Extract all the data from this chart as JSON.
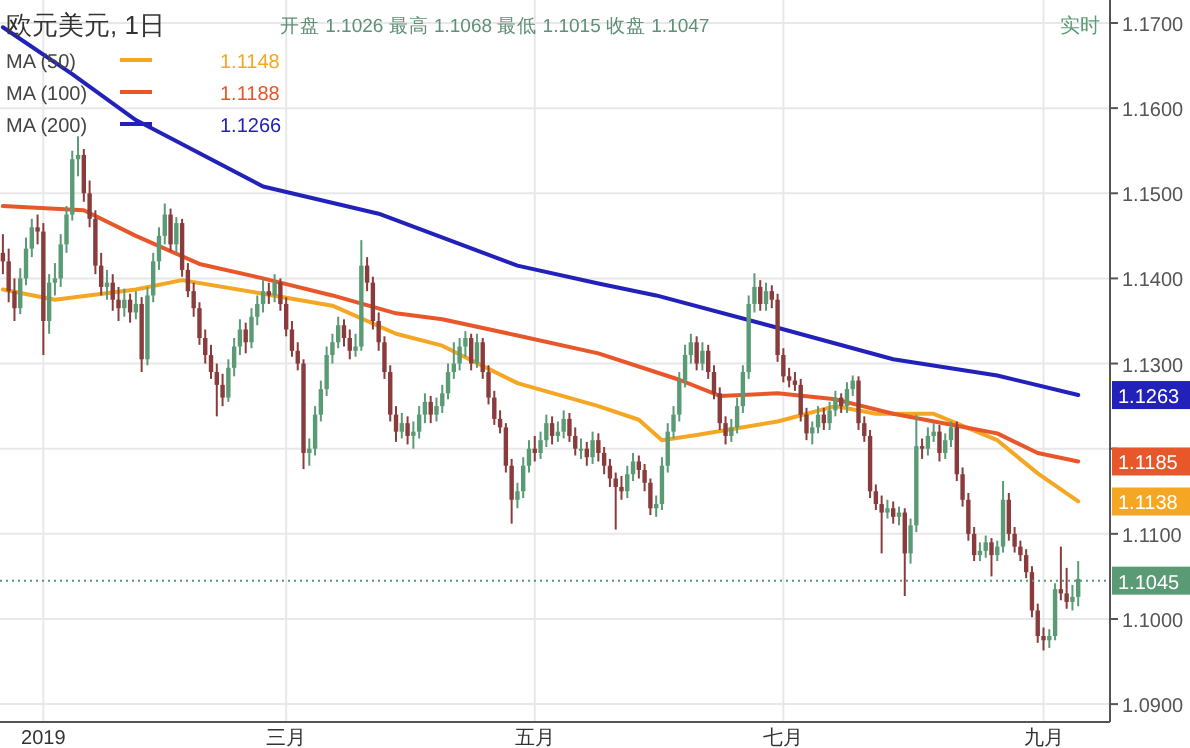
{
  "chart_data": {
    "type": "candlestick",
    "title": "欧元美元, 1日",
    "categories": [
      null,
      null,
      null,
      null,
      null,
      null,
      null,
      "2019",
      null,
      null,
      null,
      null,
      null,
      null,
      null,
      null,
      null,
      null,
      null,
      null,
      null,
      null,
      null,
      null,
      null,
      null,
      null,
      null,
      null,
      null,
      null,
      null,
      null,
      null,
      null,
      null,
      null,
      null,
      null,
      null,
      null,
      null,
      null,
      null,
      null,
      null,
      null,
      null,
      null,
      "三月",
      null,
      null,
      null,
      null,
      null,
      null,
      null,
      null,
      null,
      null,
      null,
      null,
      null,
      null,
      null,
      null,
      null,
      null,
      null,
      null,
      null,
      null,
      null,
      null,
      null,
      null,
      null,
      null,
      null,
      null,
      null,
      null,
      null,
      null,
      null,
      null,
      null,
      null,
      null,
      null,
      null,
      null,
      "五月",
      null,
      null,
      null,
      null,
      null,
      null,
      null,
      null,
      null,
      null,
      null,
      null,
      null,
      null,
      null,
      null,
      null,
      null,
      null,
      null,
      null,
      null,
      null,
      null,
      null,
      null,
      null,
      null,
      null,
      null,
      null,
      null,
      null,
      null,
      null,
      null,
      null,
      null,
      null,
      null,
      null,
      null,
      "七月",
      null,
      null,
      null,
      null,
      null,
      null,
      null,
      null,
      null,
      null,
      null,
      null,
      null,
      null,
      null,
      null,
      null,
      null,
      null,
      null,
      null,
      null,
      null,
      null,
      null,
      null,
      null,
      null,
      null,
      null,
      null,
      null,
      null,
      null,
      null,
      null,
      null,
      null,
      null,
      null,
      null,
      null,
      null,
      null,
      "九月",
      null,
      null,
      null,
      null,
      null,
      null
    ],
    "ohlc": [
      [
        1.143,
        1.1452,
        1.1405,
        1.142
      ],
      [
        1.142,
        1.1435,
        1.1372,
        1.1385
      ],
      [
        1.1385,
        1.14,
        1.135,
        1.1365
      ],
      [
        1.1365,
        1.1412,
        1.1358,
        1.14
      ],
      [
        1.14,
        1.1448,
        1.1392,
        1.1435
      ],
      [
        1.1435,
        1.147,
        1.1425,
        1.146
      ],
      [
        1.146,
        1.1475,
        1.144,
        1.1455
      ],
      [
        1.1455,
        1.1465,
        1.131,
        1.135
      ],
      [
        1.135,
        1.1405,
        1.1335,
        1.1395
      ],
      [
        1.1395,
        1.1418,
        1.138,
        1.14
      ],
      [
        1.14,
        1.1452,
        1.139,
        1.144
      ],
      [
        1.144,
        1.1485,
        1.143,
        1.1475
      ],
      [
        1.1475,
        1.155,
        1.1468,
        1.154
      ],
      [
        1.154,
        1.1567,
        1.152,
        1.1545
      ],
      [
        1.1545,
        1.1552,
        1.149,
        1.15
      ],
      [
        1.15,
        1.1515,
        1.146,
        1.147
      ],
      [
        1.147,
        1.148,
        1.1405,
        1.1415
      ],
      [
        1.1415,
        1.143,
        1.138,
        1.139
      ],
      [
        1.139,
        1.141,
        1.1375,
        1.1395
      ],
      [
        1.1395,
        1.1405,
        1.1362,
        1.1375
      ],
      [
        1.1375,
        1.139,
        1.135,
        1.1365
      ],
      [
        1.1365,
        1.1388,
        1.1355,
        1.1375
      ],
      [
        1.1375,
        1.1382,
        1.1348,
        1.136
      ],
      [
        1.136,
        1.1385,
        1.1352,
        1.137
      ],
      [
        1.137,
        1.1378,
        1.129,
        1.1305
      ],
      [
        1.1305,
        1.139,
        1.1298,
        1.138
      ],
      [
        1.138,
        1.143,
        1.1372,
        1.142
      ],
      [
        1.142,
        1.146,
        1.141,
        1.145
      ],
      [
        1.145,
        1.1488,
        1.144,
        1.1475
      ],
      [
        1.1475,
        1.1482,
        1.1432,
        1.144
      ],
      [
        1.144,
        1.1472,
        1.143,
        1.1465
      ],
      [
        1.1465,
        1.147,
        1.1402,
        1.141
      ],
      [
        1.141,
        1.1418,
        1.1378,
        1.1385
      ],
      [
        1.1385,
        1.1395,
        1.1355,
        1.1365
      ],
      [
        1.1365,
        1.1372,
        1.1322,
        1.133
      ],
      [
        1.133,
        1.134,
        1.13,
        1.131
      ],
      [
        1.131,
        1.1322,
        1.1282,
        1.129
      ],
      [
        1.129,
        1.13,
        1.1238,
        1.1275
      ],
      [
        1.1275,
        1.1288,
        1.125,
        1.126
      ],
      [
        1.126,
        1.1305,
        1.1255,
        1.1295
      ],
      [
        1.1295,
        1.133,
        1.1285,
        1.132
      ],
      [
        1.132,
        1.1352,
        1.131,
        1.134
      ],
      [
        1.134,
        1.1348,
        1.1312,
        1.1325
      ],
      [
        1.1325,
        1.1365,
        1.1318,
        1.1355
      ],
      [
        1.1355,
        1.138,
        1.1345,
        1.137
      ],
      [
        1.137,
        1.1398,
        1.136,
        1.1385
      ],
      [
        1.1385,
        1.1395,
        1.137,
        1.138
      ],
      [
        1.138,
        1.1405,
        1.1372,
        1.1395
      ],
      [
        1.1395,
        1.14,
        1.1362,
        1.137
      ],
      [
        1.137,
        1.1378,
        1.1332,
        1.134
      ],
      [
        1.134,
        1.135,
        1.1308,
        1.1315
      ],
      [
        1.1315,
        1.1325,
        1.1292,
        1.13
      ],
      [
        1.13,
        1.1305,
        1.1176,
        1.1195
      ],
      [
        1.1195,
        1.1212,
        1.118,
        1.12
      ],
      [
        1.12,
        1.125,
        1.1192,
        1.124
      ],
      [
        1.124,
        1.128,
        1.1232,
        1.127
      ],
      [
        1.127,
        1.132,
        1.1262,
        1.131
      ],
      [
        1.131,
        1.1335,
        1.13,
        1.1325
      ],
      [
        1.1325,
        1.1355,
        1.1318,
        1.1345
      ],
      [
        1.1345,
        1.1352,
        1.132,
        1.133
      ],
      [
        1.133,
        1.134,
        1.1305,
        1.1315
      ],
      [
        1.1315,
        1.1335,
        1.1308,
        1.132
      ],
      [
        1.132,
        1.1445,
        1.1315,
        1.1415
      ],
      [
        1.1415,
        1.1425,
        1.1385,
        1.1395
      ],
      [
        1.1395,
        1.1402,
        1.134,
        1.135
      ],
      [
        1.135,
        1.136,
        1.1315,
        1.1325
      ],
      [
        1.1325,
        1.1332,
        1.1282,
        1.129
      ],
      [
        1.129,
        1.1298,
        1.1232,
        1.124
      ],
      [
        1.124,
        1.125,
        1.1208,
        1.122
      ],
      [
        1.122,
        1.1242,
        1.1212,
        1.123
      ],
      [
        1.123,
        1.1238,
        1.1205,
        1.1215
      ],
      [
        1.1215,
        1.1232,
        1.12,
        1.122
      ],
      [
        1.122,
        1.125,
        1.1212,
        1.124
      ],
      [
        1.124,
        1.1265,
        1.123,
        1.1255
      ],
      [
        1.1255,
        1.1262,
        1.123,
        1.124
      ],
      [
        1.124,
        1.126,
        1.1232,
        1.125
      ],
      [
        1.125,
        1.1275,
        1.1242,
        1.1265
      ],
      [
        1.1265,
        1.13,
        1.1258,
        1.129
      ],
      [
        1.129,
        1.1325,
        1.1282,
        1.13
      ],
      [
        1.13,
        1.133,
        1.1292,
        1.132
      ],
      [
        1.132,
        1.1338,
        1.1308,
        1.133
      ],
      [
        1.133,
        1.1335,
        1.1292,
        1.13
      ],
      [
        1.13,
        1.1335,
        1.1295,
        1.1325
      ],
      [
        1.1325,
        1.133,
        1.1282,
        1.129
      ],
      [
        1.129,
        1.1298,
        1.1252,
        1.126
      ],
      [
        1.126,
        1.1268,
        1.1228,
        1.1235
      ],
      [
        1.1235,
        1.1245,
        1.1218,
        1.1225
      ],
      [
        1.1225,
        1.123,
        1.1172,
        1.118
      ],
      [
        1.118,
        1.1188,
        1.1112,
        1.114
      ],
      [
        1.114,
        1.116,
        1.113,
        1.115
      ],
      [
        1.115,
        1.119,
        1.1142,
        1.118
      ],
      [
        1.118,
        1.121,
        1.1172,
        1.12
      ],
      [
        1.12,
        1.1215,
        1.1185,
        1.1195
      ],
      [
        1.1195,
        1.122,
        1.1188,
        1.121
      ],
      [
        1.121,
        1.124,
        1.1202,
        1.123
      ],
      [
        1.123,
        1.1238,
        1.1205,
        1.1215
      ],
      [
        1.1215,
        1.1232,
        1.1208,
        1.122
      ],
      [
        1.122,
        1.1245,
        1.1212,
        1.1235
      ],
      [
        1.1235,
        1.1242,
        1.1208,
        1.1215
      ],
      [
        1.1215,
        1.1225,
        1.1192,
        1.12
      ],
      [
        1.12,
        1.1212,
        1.1188,
        1.12
      ],
      [
        1.12,
        1.1208,
        1.118,
        1.119
      ],
      [
        1.119,
        1.122,
        1.1182,
        1.121
      ],
      [
        1.121,
        1.1218,
        1.1185,
        1.1195
      ],
      [
        1.1195,
        1.1202,
        1.117,
        1.118
      ],
      [
        1.118,
        1.1188,
        1.1155,
        1.1165
      ],
      [
        1.1165,
        1.1172,
        1.1105,
        1.1155
      ],
      [
        1.1155,
        1.1168,
        1.114,
        1.115
      ],
      [
        1.115,
        1.118,
        1.1142,
        1.117
      ],
      [
        1.117,
        1.1195,
        1.1162,
        1.1185
      ],
      [
        1.1185,
        1.1192,
        1.1165,
        1.1175
      ],
      [
        1.1175,
        1.1182,
        1.115,
        1.116
      ],
      [
        1.116,
        1.1165,
        1.1122,
        1.113
      ],
      [
        1.113,
        1.1145,
        1.112,
        1.1135
      ],
      [
        1.1135,
        1.119,
        1.1128,
        1.118
      ],
      [
        1.118,
        1.123,
        1.1172,
        1.122
      ],
      [
        1.122,
        1.125,
        1.1212,
        1.124
      ],
      [
        1.124,
        1.129,
        1.1232,
        1.128
      ],
      [
        1.128,
        1.1322,
        1.1272,
        1.131
      ],
      [
        1.131,
        1.1335,
        1.13,
        1.1325
      ],
      [
        1.1325,
        1.1332,
        1.1292,
        1.13
      ],
      [
        1.13,
        1.1325,
        1.1292,
        1.1315
      ],
      [
        1.1315,
        1.1322,
        1.1282,
        1.129
      ],
      [
        1.129,
        1.1298,
        1.1258,
        1.1265
      ],
      [
        1.1265,
        1.1272,
        1.1222,
        1.123
      ],
      [
        1.123,
        1.1238,
        1.1205,
        1.1215
      ],
      [
        1.1215,
        1.1235,
        1.1208,
        1.1225
      ],
      [
        1.1225,
        1.126,
        1.1218,
        1.125
      ],
      [
        1.125,
        1.1298,
        1.1242,
        1.129
      ],
      [
        1.129,
        1.138,
        1.1282,
        1.137
      ],
      [
        1.137,
        1.1406,
        1.136,
        1.139
      ],
      [
        1.139,
        1.1398,
        1.1362,
        1.137
      ],
      [
        1.137,
        1.1395,
        1.1362,
        1.1385
      ],
      [
        1.1385,
        1.1392,
        1.1365,
        1.1375
      ],
      [
        1.1375,
        1.1382,
        1.1302,
        1.131
      ],
      [
        1.131,
        1.1318,
        1.1278,
        1.1285
      ],
      [
        1.1285,
        1.1295,
        1.1272,
        1.128
      ],
      [
        1.128,
        1.129,
        1.1268,
        1.1275
      ],
      [
        1.1275,
        1.1282,
        1.1232,
        1.124
      ],
      [
        1.124,
        1.1248,
        1.121,
        1.1218
      ],
      [
        1.1218,
        1.1232,
        1.1205,
        1.1225
      ],
      [
        1.1225,
        1.125,
        1.1218,
        1.124
      ],
      [
        1.124,
        1.1248,
        1.1222,
        1.123
      ],
      [
        1.123,
        1.1255,
        1.1222,
        1.1245
      ],
      [
        1.1245,
        1.1268,
        1.1238,
        1.126
      ],
      [
        1.126,
        1.1265,
        1.1242,
        1.125
      ],
      [
        1.125,
        1.1278,
        1.1242,
        1.127
      ],
      [
        1.127,
        1.1286,
        1.1262,
        1.128
      ],
      [
        1.128,
        1.1285,
        1.1222,
        1.123
      ],
      [
        1.123,
        1.1238,
        1.1208,
        1.1215
      ],
      [
        1.1215,
        1.1222,
        1.1142,
        1.115
      ],
      [
        1.115,
        1.1158,
        1.1128,
        1.1135
      ],
      [
        1.1135,
        1.1145,
        1.1077,
        1.1125
      ],
      [
        1.1125,
        1.114,
        1.1118,
        1.113
      ],
      [
        1.113,
        1.1138,
        1.1112,
        1.112
      ],
      [
        1.112,
        1.1132,
        1.111,
        1.1125
      ],
      [
        1.1125,
        1.113,
        1.1027,
        1.1077
      ],
      [
        1.1077,
        1.1118,
        1.1065,
        1.111
      ],
      [
        1.111,
        1.124,
        1.1102,
        1.1203
      ],
      [
        1.1203,
        1.1212,
        1.1188,
        1.12
      ],
      [
        1.12,
        1.1225,
        1.1192,
        1.1215
      ],
      [
        1.1215,
        1.123,
        1.1208,
        1.122
      ],
      [
        1.122,
        1.1228,
        1.1185,
        1.1195
      ],
      [
        1.1195,
        1.1218,
        1.1188,
        1.121
      ],
      [
        1.121,
        1.1232,
        1.1202,
        1.1225
      ],
      [
        1.1225,
        1.1232,
        1.1162,
        1.117
      ],
      [
        1.117,
        1.1178,
        1.1132,
        1.114
      ],
      [
        1.114,
        1.1148,
        1.1092,
        1.11
      ],
      [
        1.11,
        1.1108,
        1.1068,
        1.1075
      ],
      [
        1.1075,
        1.109,
        1.1068,
        1.108
      ],
      [
        1.108,
        1.1098,
        1.1072,
        1.109
      ],
      [
        1.109,
        1.1095,
        1.105,
        1.1075
      ],
      [
        1.1075,
        1.1092,
        1.1068,
        1.1085
      ],
      [
        1.1085,
        1.1162,
        1.1078,
        1.114
      ],
      [
        1.114,
        1.1148,
        1.1092,
        1.11
      ],
      [
        1.11,
        1.1108,
        1.1078,
        1.1085
      ],
      [
        1.1085,
        1.1092,
        1.1068,
        1.1075
      ],
      [
        1.1075,
        1.1082,
        1.1048,
        1.1055
      ],
      [
        1.1055,
        1.1062,
        1.1002,
        1.101
      ],
      [
        1.101,
        1.1018,
        1.0972,
        1.098
      ],
      [
        1.098,
        1.099,
        1.0963,
        1.0975
      ],
      [
        1.0975,
        1.0988,
        1.0966,
        1.098
      ],
      [
        1.098,
        1.1042,
        1.0975,
        1.1035
      ],
      [
        1.1035,
        1.1085,
        1.1022,
        1.103
      ],
      [
        1.103,
        1.106,
        1.1012,
        1.102
      ],
      [
        1.102,
        1.104,
        1.101,
        1.1026
      ],
      [
        1.1026,
        1.1068,
        1.1015,
        1.1047
      ]
    ],
    "series": [
      {
        "name": "MA (50)",
        "type": "line",
        "color": "#f5a623",
        "values": [
          1.1387,
          null,
          null,
          null,
          null,
          null,
          null,
          null,
          null,
          1.1375,
          null,
          null,
          null,
          null,
          null,
          null,
          null,
          null,
          null,
          null,
          null,
          null,
          null,
          1.1387,
          null,
          null,
          null,
          null,
          null,
          null,
          null,
          1.1398,
          null,
          null,
          null,
          null,
          null,
          null,
          null,
          null,
          null,
          null,
          null,
          null,
          null,
          1.1382,
          null,
          null,
          null,
          null,
          null,
          null,
          null,
          null,
          null,
          null,
          null,
          1.1368,
          null,
          null,
          null,
          null,
          null,
          null,
          null,
          null,
          null,
          null,
          1.1335,
          null,
          null,
          null,
          null,
          null,
          null,
          null,
          1.1321,
          null,
          null,
          null,
          null,
          null,
          null,
          null,
          null,
          null,
          null,
          null,
          null,
          1.1277,
          null,
          null,
          null,
          null,
          null,
          null,
          null,
          null,
          null,
          null,
          null,
          null,
          null,
          1.125,
          null,
          null,
          null,
          null,
          null,
          null,
          1.1234,
          null,
          null,
          null,
          1.121,
          null,
          null,
          null,
          null,
          null,
          1.1216,
          null,
          null,
          null,
          null,
          null,
          null,
          null,
          null,
          null,
          null,
          null,
          null,
          null,
          1.1232,
          null,
          null,
          null,
          null,
          null,
          null,
          null,
          null,
          null,
          1.125,
          null,
          null,
          null,
          null,
          null,
          null,
          1.1241,
          null,
          null,
          null,
          null,
          null,
          null,
          null,
          null,
          null,
          1.1241,
          null,
          null,
          null,
          null,
          null,
          null,
          null,
          null,
          null,
          null,
          1.121,
          null,
          null,
          null,
          null,
          null,
          null,
          1.1171,
          null,
          null,
          null,
          null,
          null,
          null,
          1.1138
        ]
      },
      {
        "name": "MA (100)",
        "type": "line",
        "color": "#e8572a",
        "values": [
          1.1485,
          null,
          null,
          null,
          null,
          null,
          null,
          null,
          null,
          null,
          null,
          null,
          null,
          null,
          1.148,
          null,
          null,
          null,
          null,
          null,
          null,
          null,
          null,
          1.145,
          null,
          null,
          null,
          null,
          null,
          null,
          null,
          null,
          null,
          null,
          1.1417,
          null,
          null,
          null,
          null,
          null,
          null,
          null,
          null,
          null,
          null,
          1.14,
          null,
          null,
          null,
          null,
          null,
          null,
          null,
          null,
          null,
          null,
          null,
          1.138,
          null,
          null,
          null,
          null,
          null,
          null,
          null,
          null,
          null,
          null,
          1.1359,
          null,
          null,
          null,
          null,
          null,
          null,
          null,
          1.1352,
          null,
          null,
          null,
          null,
          null,
          null,
          null,
          null,
          null,
          null,
          null,
          null,
          1.1333,
          null,
          null,
          null,
          null,
          null,
          null,
          null,
          null,
          null,
          null,
          null,
          null,
          null,
          1.1312,
          null,
          null,
          null,
          null,
          null,
          null,
          null,
          null,
          null,
          null,
          null,
          null,
          null,
          1.1281,
          null,
          null,
          null,
          null,
          null,
          null,
          1.1262,
          null,
          null,
          null,
          null,
          null,
          null,
          null,
          null,
          null,
          1.1265,
          null,
          null,
          null,
          null,
          null,
          null,
          null,
          null,
          null,
          1.1258,
          null,
          null,
          null,
          null,
          null,
          null,
          null,
          null,
          null,
          1.1241,
          null,
          null,
          null,
          null,
          null,
          null,
          null,
          null,
          null,
          null,
          1.1227,
          null,
          null,
          null,
          null,
          null,
          null,
          1.1218,
          null,
          null,
          null,
          null,
          null,
          null,
          1.1195,
          null,
          null,
          null,
          null,
          null,
          null,
          1.1185
        ]
      },
      {
        "name": "MA (200)",
        "type": "line",
        "color": "#2222bb",
        "values": [
          1.1695,
          null,
          null,
          null,
          null,
          null,
          null,
          null,
          null,
          null,
          null,
          null,
          1.164,
          null,
          null,
          null,
          null,
          null,
          null,
          null,
          null,
          null,
          null,
          1.1586,
          null,
          null,
          null,
          null,
          null,
          null,
          null,
          null,
          null,
          null,
          null,
          null,
          null,
          null,
          null,
          null,
          null,
          null,
          null,
          null,
          null,
          1.1508,
          null,
          null,
          null,
          null,
          null,
          null,
          null,
          null,
          null,
          null,
          null,
          null,
          null,
          null,
          null,
          null,
          null,
          null,
          null,
          1.1476,
          null,
          null,
          null,
          null,
          null,
          null,
          null,
          null,
          null,
          null,
          null,
          null,
          null,
          null,
          null,
          null,
          null,
          null,
          null,
          null,
          null,
          null,
          null,
          1.1415,
          null,
          null,
          null,
          null,
          null,
          null,
          null,
          null,
          null,
          null,
          null,
          null,
          null,
          1.1394,
          null,
          null,
          null,
          null,
          null,
          null,
          null,
          null,
          null,
          1.138,
          null,
          null,
          null,
          null,
          null,
          null,
          null,
          null,
          null,
          null,
          null,
          null,
          null,
          null,
          null,
          null,
          null,
          null,
          null,
          null,
          1.1342,
          null,
          null,
          null,
          null,
          null,
          null,
          null,
          null,
          null,
          null,
          null,
          null,
          null,
          null,
          null,
          null,
          null,
          null,
          null,
          1.1305,
          null,
          null,
          null,
          null,
          null,
          null,
          null,
          null,
          null,
          null,
          null,
          null,
          null,
          null,
          null,
          null,
          null,
          1.1286,
          null,
          null,
          null,
          null,
          null,
          null,
          null,
          null,
          null,
          null,
          null,
          null,
          null,
          1.1263
        ]
      }
    ],
    "ylim": [
      1.0879,
      1.1727
    ],
    "yticks": [
      {
        "value": 1.09,
        "label": "1.0900"
      },
      {
        "value": 1.1,
        "label": "1.1000"
      },
      {
        "value": 1.11,
        "label": "1.1100"
      },
      {
        "value": 1.12,
        "label": null
      },
      {
        "value": 1.13,
        "label": "1.1300"
      },
      {
        "value": 1.14,
        "label": "1.1400"
      },
      {
        "value": 1.15,
        "label": "1.1500"
      },
      {
        "value": 1.16,
        "label": "1.1600"
      },
      {
        "value": 1.17,
        "label": "1.1700"
      }
    ],
    "grid": true,
    "legend": "top left",
    "marker": "none",
    "ref_lines": [
      {
        "axis": "y",
        "value": 1.1045,
        "label": "1.1045",
        "color": "#5a9b76",
        "line_style": "dotted"
      }
    ],
    "annotations": [
      "开盘 1.1026 最高 1.1068 最低 1.1015 收盘 1.1047",
      "实时",
      "1.1148",
      "1.1188",
      "1.1266",
      "1.1138",
      "1.1185",
      "1.1263"
    ]
  }
}
